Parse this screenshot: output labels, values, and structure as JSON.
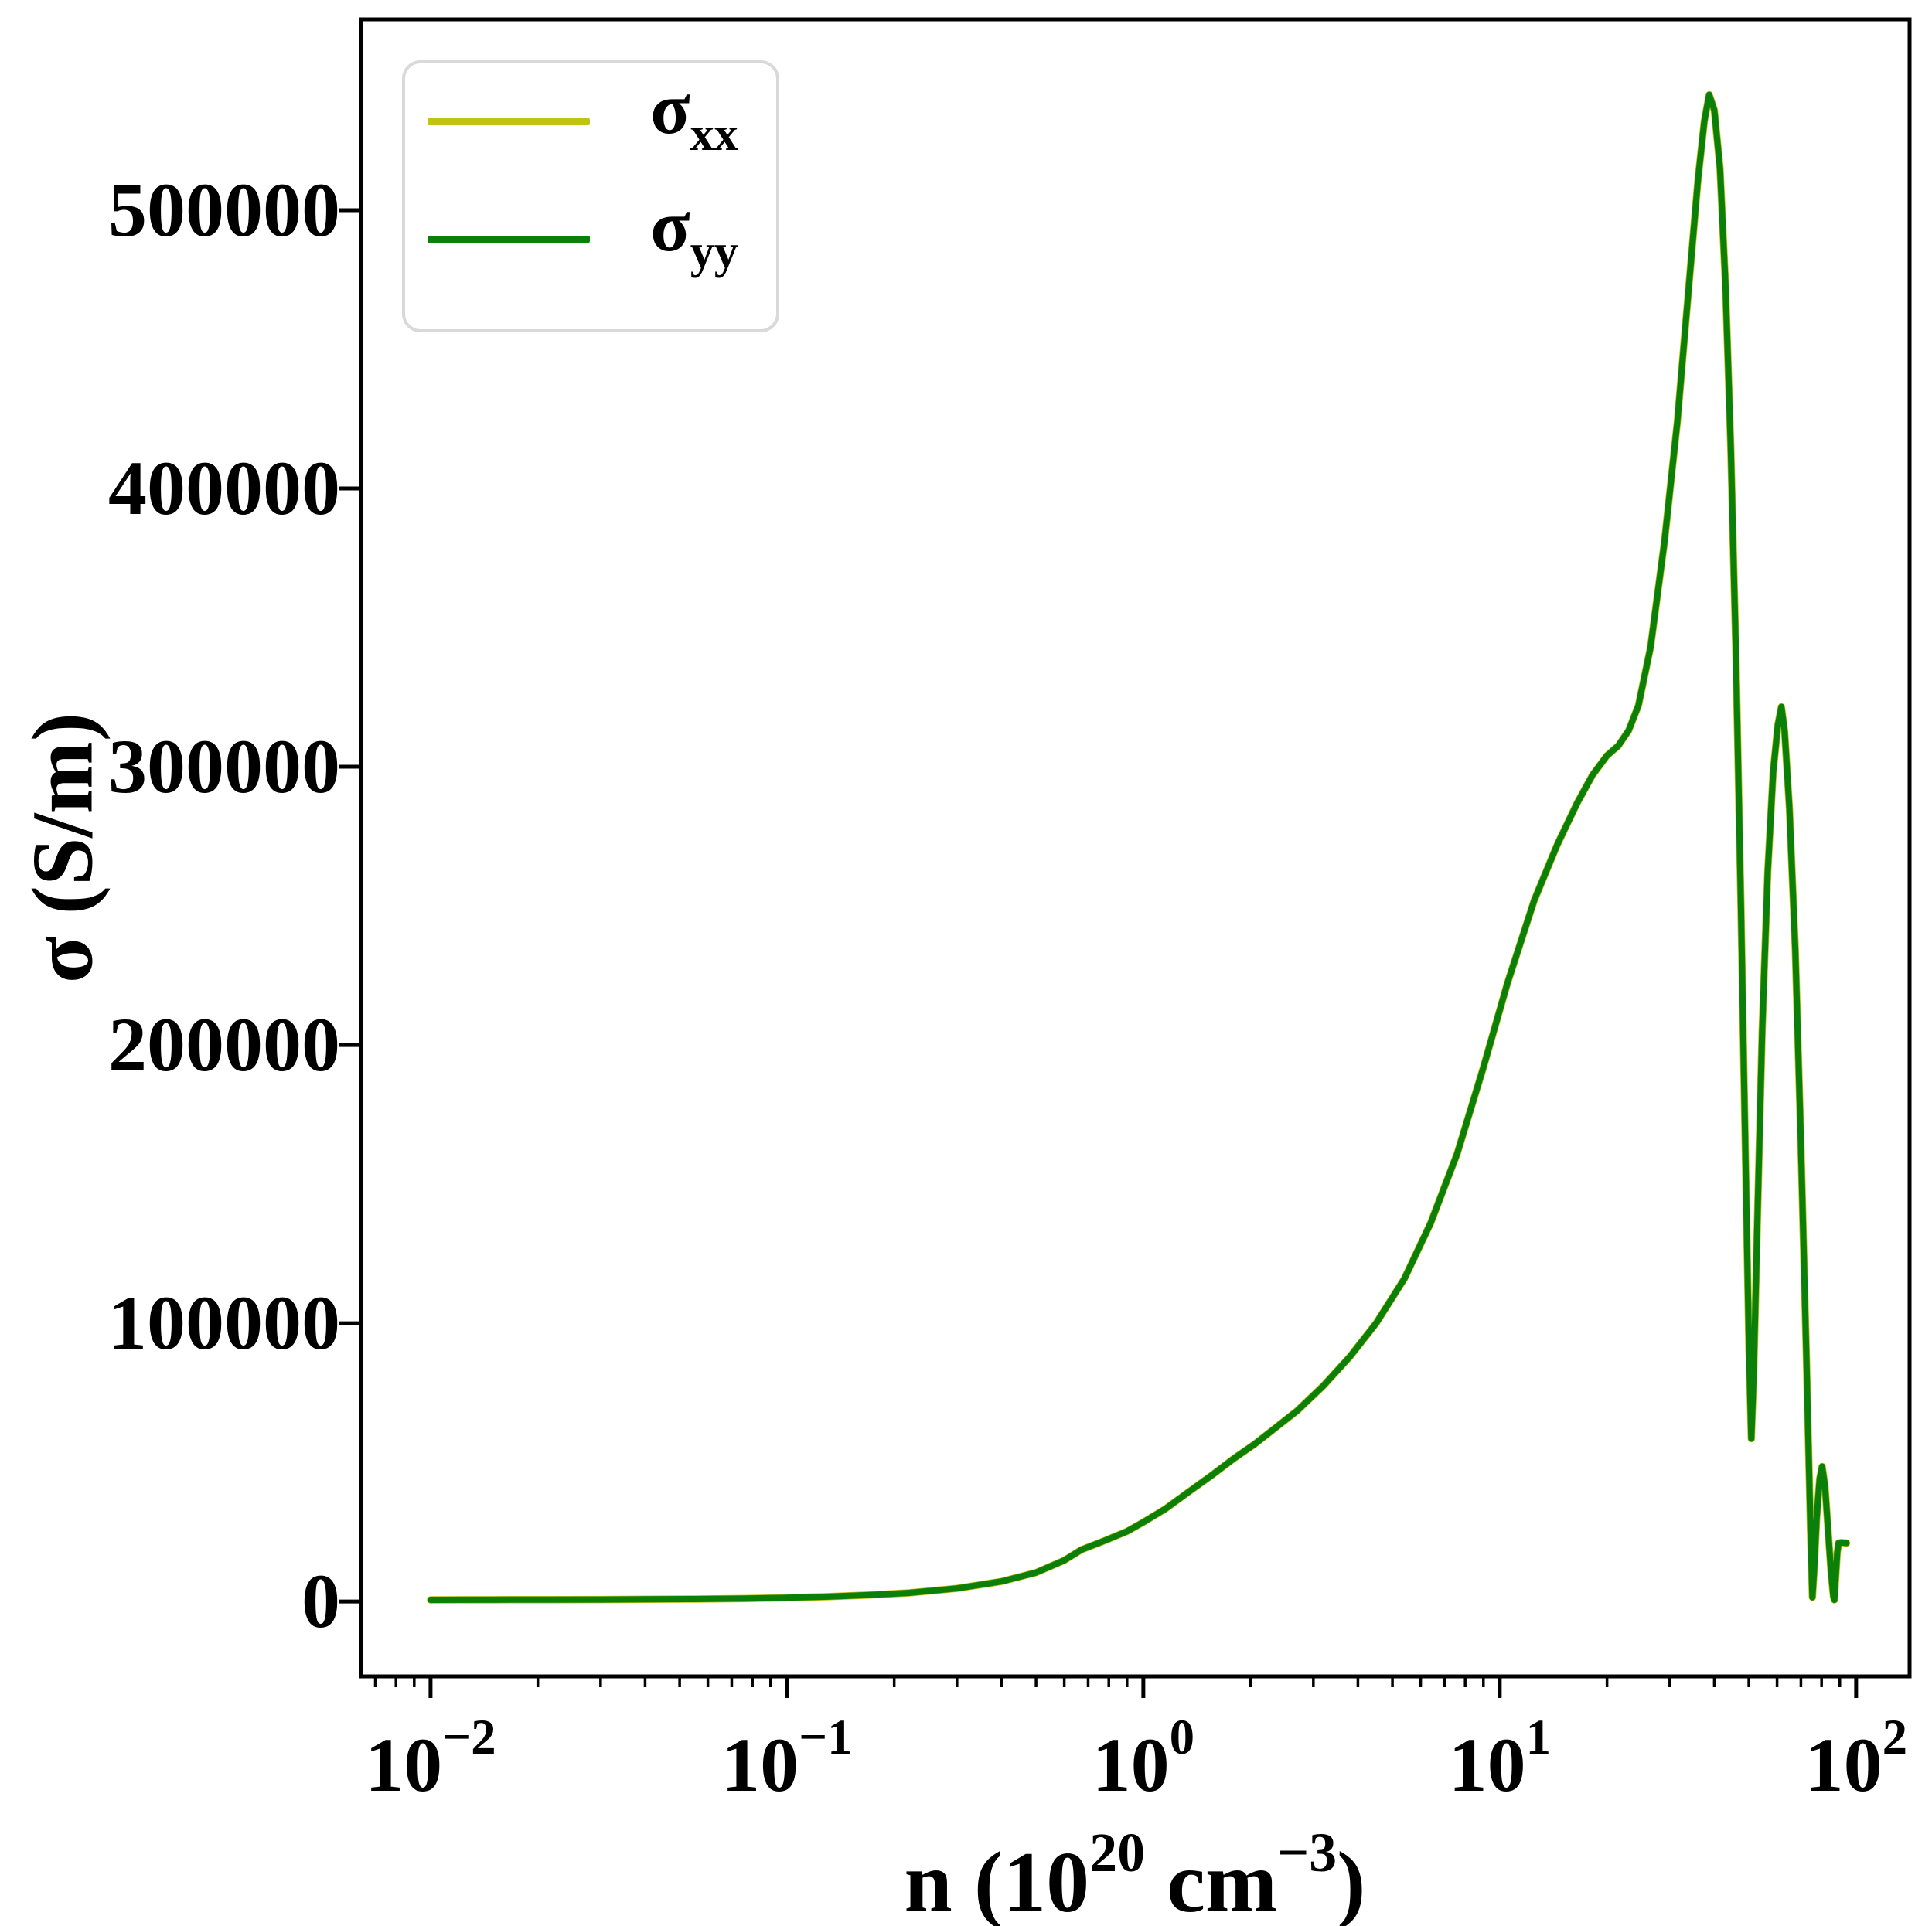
{
  "chart_data": {
    "type": "line",
    "title": "",
    "x_axis": {
      "label_segments": [
        {
          "t": "n (10",
          "sup": false
        },
        {
          "t": "20",
          "sup": true
        },
        {
          "t": " cm",
          "sup": false
        },
        {
          "t": "−3",
          "sup": true
        },
        {
          "t": ")",
          "sup": false
        }
      ],
      "scale": "log",
      "range": [
        0.0064,
        141
      ],
      "ticks": [
        {
          "value": 0.01,
          "exp": "−2"
        },
        {
          "value": 0.1,
          "exp": "−1"
        },
        {
          "value": 1,
          "exp": "0"
        },
        {
          "value": 10,
          "exp": "1"
        },
        {
          "value": 100,
          "exp": "2"
        }
      ]
    },
    "y_axis": {
      "label": "σ (S/m)",
      "scale": "linear",
      "range": [
        -26900,
        568600
      ],
      "ticks": [
        0,
        100000,
        200000,
        300000,
        400000,
        500000
      ]
    },
    "grid": false,
    "legend": {
      "position": "upper left",
      "entries": [
        {
          "name": "sigma_xx",
          "main": "σ",
          "sub": "xx",
          "color": "#c2c213"
        },
        {
          "name": "sigma_yy",
          "main": "σ",
          "sub": "yy",
          "color": "#0a800a"
        }
      ]
    },
    "n": [
      0.01,
      0.013,
      0.017,
      0.022,
      0.03,
      0.04,
      0.055,
      0.075,
      0.1,
      0.13,
      0.17,
      0.22,
      0.3,
      0.4,
      0.5,
      0.6,
      0.67,
      0.78,
      0.9,
      1.0,
      1.15,
      1.34,
      1.55,
      1.8,
      2.05,
      2.31,
      2.7,
      3.2,
      3.8,
      4.5,
      5.4,
      6.4,
      7.6,
      9.0,
      10.5,
      12.5,
      14.5,
      16.5,
      18.2,
      20,
      21.5,
      23,
      24.5,
      26.5,
      29,
      31.5,
      34,
      36,
      37.5,
      38.7,
      40,
      41.5,
      43,
      44.5,
      46,
      47.5,
      49,
      50,
      50.8,
      51.6,
      52.8,
      54.5,
      56.5,
      58.5,
      60.3,
      61.7,
      63,
      65,
      67.5,
      70,
      72.5,
      74.5,
      75.4,
      76.3,
      77.5,
      79,
      80.3,
      81.8,
      83.2,
      85,
      86.3,
      86.9,
      87.6,
      88.5,
      89.3,
      91,
      94
    ],
    "series": [
      {
        "name": "sigma_xx",
        "color": "#c2c213",
        "values": [
          600,
          620,
          640,
          670,
          720,
          790,
          880,
          1050,
          1350,
          1750,
          2350,
          3100,
          4700,
          7200,
          10400,
          14800,
          18600,
          21900,
          25200,
          28500,
          33200,
          39400,
          45200,
          51500,
          56500,
          61700,
          68500,
          77500,
          88000,
          100000,
          116000,
          136000,
          161000,
          192000,
          222000,
          252000,
          272000,
          287000,
          297000,
          304000,
          307500,
          313000,
          322000,
          343000,
          381000,
          424000,
          474000,
          511000,
          532000,
          541500,
          536000,
          515000,
          473000,
          415000,
          340000,
          251000,
          155000,
          93000,
          58500,
          82000,
          135000,
          205000,
          262000,
          298000,
          315000,
          321500,
          313000,
          285000,
          234000,
          165000,
          88000,
          25000,
          1500,
          12000,
          30000,
          44000,
          48500,
          41500,
          28000,
          11000,
          2000,
          600,
          8000,
          17500,
          21000,
          21200,
          21000
        ]
      },
      {
        "name": "sigma_yy",
        "color": "#0a800a",
        "values": [
          600,
          620,
          640,
          670,
          720,
          790,
          880,
          1050,
          1350,
          1750,
          2350,
          3100,
          4700,
          7200,
          10400,
          14800,
          18600,
          21900,
          25200,
          28500,
          33200,
          39400,
          45200,
          51500,
          56500,
          61700,
          68500,
          77500,
          88000,
          100000,
          116000,
          136000,
          161000,
          192000,
          222000,
          252000,
          272000,
          287000,
          297000,
          304000,
          307500,
          313000,
          322000,
          343000,
          381000,
          424000,
          474000,
          511000,
          532000,
          541500,
          536000,
          515000,
          473000,
          415000,
          340000,
          251000,
          155000,
          93000,
          58500,
          82000,
          135000,
          205000,
          262000,
          298000,
          315000,
          321500,
          313000,
          285000,
          234000,
          165000,
          88000,
          25000,
          1500,
          12000,
          30000,
          44000,
          48500,
          41500,
          28000,
          11000,
          2000,
          600,
          8000,
          17500,
          21000,
          21200,
          21000
        ]
      }
    ]
  }
}
